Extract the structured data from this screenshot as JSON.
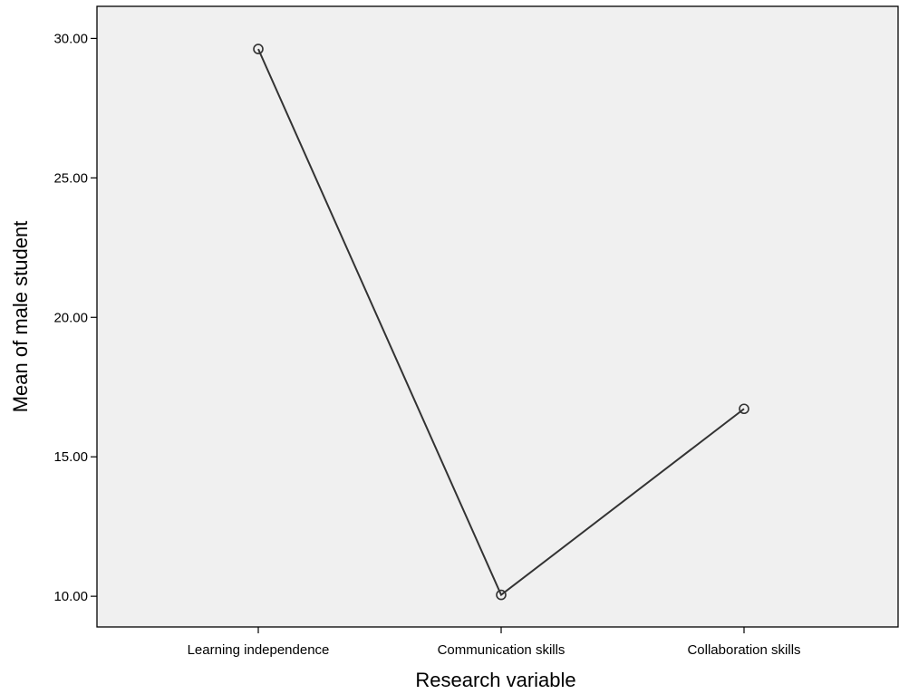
{
  "chart_data": {
    "type": "line",
    "title": "",
    "xlabel": "Research variable",
    "ylabel": "Mean of male student",
    "categories": [
      "Learning independence",
      "Communication skills",
      "Collaboration skills"
    ],
    "values": [
      29.62,
      10.05,
      16.72
    ],
    "ylim": [
      8.9,
      31.15
    ],
    "yticks": [
      10,
      15,
      20,
      25,
      30
    ],
    "ytick_labels": [
      "10.00",
      "15.00",
      "20.00",
      "25.00",
      "30.00"
    ],
    "grid": false,
    "legend": "none",
    "marker": "open-circle"
  },
  "colors": {
    "plot_background": "#f0f0f0",
    "line": "#333333",
    "axis": "#000000",
    "page_background": "#ffffff"
  }
}
